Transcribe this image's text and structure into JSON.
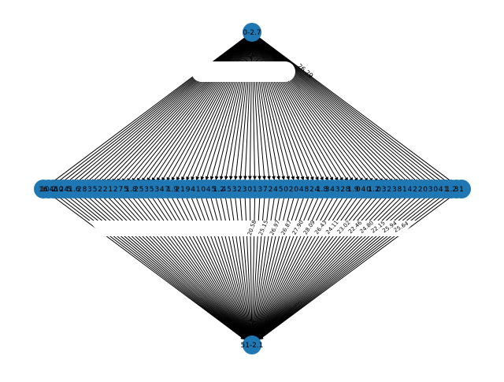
{
  "graph": {
    "type": "directed-network",
    "layout": "diamond",
    "node_color": "#1f77b4",
    "edge_color": "#000000",
    "source_node": "0-2.7",
    "sink_node": "51-2.1",
    "middle_labels": [
      "16",
      "10-2",
      "46",
      "10",
      "24",
      "5",
      "1.6",
      "2",
      "8",
      "3",
      "5",
      "2",
      "2",
      "1",
      "2",
      "7",
      "5",
      "1.8",
      "2",
      "5",
      "3",
      "5",
      "3",
      "4",
      "7",
      "1.9",
      "2",
      "1",
      "9",
      "4",
      "1",
      "0",
      "4",
      "5",
      "1.2",
      "4",
      "5",
      "3",
      "2",
      "3",
      "0",
      "1",
      "3",
      "7",
      "2",
      "4",
      "5",
      "0",
      "2",
      "0",
      "4",
      "8",
      "2",
      "4",
      "1.8",
      "3",
      "4",
      "3",
      "2",
      "8",
      "1.9",
      "0",
      "4",
      "0",
      "1.2",
      "0",
      "3",
      "2",
      "3",
      "8",
      "1",
      "4",
      "2",
      "2",
      "0",
      "3",
      "0",
      "4",
      "1",
      "1.2",
      "3",
      "1"
    ],
    "top_edge_weight_labels": [
      "26.29"
    ],
    "bottom_edge_weight_labels": [
      "20.58",
      "25.15",
      "26.97",
      "26.87",
      "27.90",
      "28.09",
      "26.43",
      "24.11",
      "23.02",
      "22.46",
      "24.80",
      "22.15",
      "25.94",
      "25.64"
    ]
  }
}
